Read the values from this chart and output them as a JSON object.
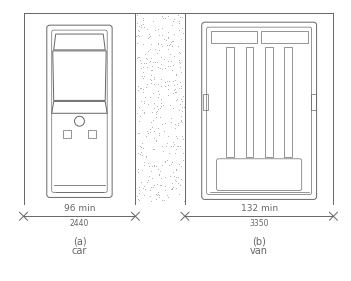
{
  "bg_color": "#ffffff",
  "line_color": "#666666",
  "fig_width": 3.51,
  "fig_height": 2.81,
  "car_label_a": "(a)",
  "car_label_b": "car",
  "van_label_a": "(b)",
  "van_label_b": "van",
  "car_dim_top": "96 min",
  "car_dim_bot": "2440",
  "van_dim_top": "132 min",
  "van_dim_bot": "3350",
  "font_size_dim": 6.5,
  "font_size_label": 7,
  "font_size_sublabel": 5.5
}
